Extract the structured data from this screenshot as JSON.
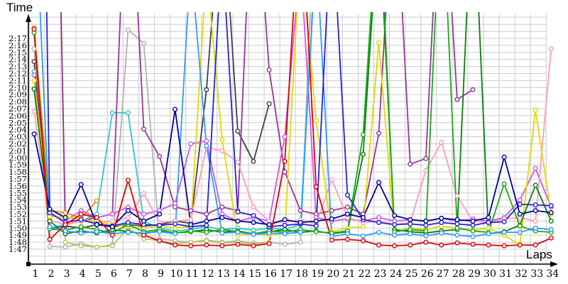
{
  "titles": {
    "y_axis": "Time",
    "x_axis": "Laps"
  },
  "layout_colors": {
    "grid": "#cccccc",
    "axis": "#000000",
    "tick_label": "#000000",
    "marker_fill": "#ffffff"
  },
  "chart_data": {
    "type": "line",
    "title": "",
    "xlabel": "Laps",
    "ylabel": "Time",
    "x": [
      1,
      2,
      3,
      4,
      5,
      6,
      7,
      8,
      9,
      10,
      11,
      12,
      13,
      14,
      15,
      16,
      17,
      18,
      19,
      20,
      21,
      22,
      23,
      24,
      25,
      26,
      27,
      28,
      29,
      30,
      31,
      32,
      33,
      34
    ],
    "x_tick_labels": [
      "1",
      "2",
      "3",
      "4",
      "5",
      "6",
      "7",
      "8",
      "9",
      "10",
      "11",
      "12",
      "13",
      "14",
      "15",
      "16",
      "17",
      "18",
      "19",
      "20",
      "21",
      "22",
      "23",
      "24",
      "25",
      "26",
      "27",
      "28",
      "29",
      "30",
      "31",
      "32",
      "33",
      "34"
    ],
    "y_tick_labels": [
      "1:47",
      "1:48",
      "1:49",
      "1:50",
      "1:51",
      "1:52",
      "1:53",
      "1:54",
      "1:55",
      "1:56",
      "1:57",
      "1:58",
      "1:59",
      "2:00",
      "2:01",
      "2:02",
      "2:03",
      "2:04",
      "2:05",
      "2:06",
      "2:07",
      "2:08",
      "2:09",
      "2:10",
      "2:11",
      "2:12",
      "2:13",
      "2:14",
      "2:15",
      "2:16",
      "2:17"
    ],
    "y_base_seconds": 107,
    "y_top_seconds": 137,
    "grid": true,
    "legend": "none",
    "note_units": "values are lap times in total seconds (1:47 = 107 s); values above ~2:20 run off the top of the plot (pit/incident laps)",
    "series": [
      {
        "name": "gray",
        "color": "#b3b3b3",
        "values": [
          135.5,
          107.4,
          107.3,
          107.8,
          107.3,
          107.6,
          138.2,
          136.3,
          108.5,
          108.2,
          108,
          108.3,
          108,
          108.2,
          107.9,
          108,
          107.7,
          108,
          160,
          null,
          null,
          null,
          null,
          null,
          null,
          null,
          null,
          null,
          null,
          null,
          null,
          null,
          null,
          null
        ]
      },
      {
        "name": "darkgray",
        "color": "#404040",
        "values": [
          133.7,
          110,
          110.3,
          110,
          110.5,
          110.2,
          110.5,
          110.3,
          110.5,
          111,
          110.7,
          129.7,
          158,
          123.8,
          119.5,
          127.7,
          null,
          null,
          null,
          null,
          null,
          null,
          null,
          null,
          null,
          null,
          null,
          null,
          null,
          null,
          null,
          null,
          null,
          null
        ]
      },
      {
        "name": "olive",
        "color": "#b4c45a",
        "values": [
          150,
          225,
          108,
          107.5,
          107.3,
          107.5,
          110,
          108.5,
          108.2,
          107.8,
          108,
          108.2,
          107.9,
          108,
          107.7,
          108,
          null,
          null,
          null,
          null,
          null,
          null,
          null,
          null,
          null,
          null,
          null,
          null,
          null,
          null,
          null,
          null,
          null,
          null
        ]
      },
      {
        "name": "orange",
        "color": "#ee8800",
        "values": [
          138.5,
          112.5,
          112.2,
          111.4,
          113.9,
          null,
          null,
          null,
          null,
          null,
          null,
          null,
          null,
          null,
          null,
          null,
          null,
          null,
          null,
          null,
          null,
          null,
          null,
          null,
          null,
          null,
          null,
          null,
          null,
          null,
          null,
          null,
          null,
          null
        ]
      },
      {
        "name": "cyan",
        "color": "#2ec8c8",
        "values": [
          132.3,
          110,
          110.5,
          111,
          112,
          126.4,
          126.4,
          111,
          110,
          109.6,
          109.8,
          110.2,
          109.8,
          110,
          109.7,
          110,
          109.8,
          110.5,
          150,
          null,
          null,
          null,
          null,
          null,
          null,
          null,
          null,
          null,
          null,
          null,
          null,
          null,
          null,
          null
        ]
      },
      {
        "name": "purple",
        "color": "#993399",
        "values": [
          155,
          220,
          110.5,
          111,
          111.5,
          112,
          168,
          124.1,
          120.2,
          113,
          112.5,
          112,
          113,
          112.5,
          164,
          132.5,
          118,
          112.5,
          112,
          112.5,
          113,
          112,
          123.5,
          162,
          119.1,
          119.9,
          165,
          128.3,
          129.7,
          null,
          null,
          null,
          null,
          null
        ]
      },
      {
        "name": "violet",
        "color": "#cc55ee",
        "values": [
          131.8,
          112,
          111,
          112.5,
          111.5,
          112,
          113,
          112,
          112.5,
          113.5,
          122,
          122.4,
          112,
          111,
          111.5,
          111,
          123,
          148,
          111.5,
          111,
          111.3,
          111,
          111.5,
          111,
          111.2,
          111,
          111.4,
          111,
          111.3,
          111,
          111.5,
          114,
          118.5,
          113
        ]
      },
      {
        "name": "pink",
        "color": "#ff9bbb",
        "values": [
          126.6,
          111.1,
          110.5,
          111,
          110.8,
          111,
          111.5,
          114.9,
          110.8,
          111,
          111.2,
          121.5,
          121,
          119.4,
          113,
          111,
          110.8,
          111.2,
          110.6,
          116.9,
          111.5,
          110.8,
          111,
          110.5,
          110.8,
          118.2,
          122.2,
          114.6,
          111,
          110.8,
          111.3,
          111.5,
          111,
          135.5
        ]
      },
      {
        "name": "yellow",
        "color": "#e2d800",
        "values": [
          131,
          111.6,
          111.6,
          111.2,
          111,
          110.5,
          110.2,
          110,
          110.3,
          110,
          110.2,
          147,
          122.6,
          109,
          109.2,
          109,
          109.3,
          150,
          125.3,
          109.5,
          110,
          110.2,
          136.4,
          109.5,
          110,
          109.8,
          110.3,
          110,
          109.7,
          110,
          109,
          107.6,
          126.8,
          112
        ]
      },
      {
        "name": "darkgreen",
        "color": "#0a7d0a",
        "values": [
          129.8,
          111,
          109.2,
          109.6,
          109.3,
          109.8,
          109.5,
          109.2,
          109.6,
          109.3,
          109.5,
          109.8,
          109.4,
          109.6,
          109.2,
          109.5,
          109.8,
          109.4,
          109.6,
          109.2,
          109.5,
          120.5,
          155,
          109.8,
          109.5,
          109.3,
          109.6,
          109.8,
          160,
          109.2,
          109.5,
          110.4,
          116.1,
          111
        ]
      },
      {
        "name": "green",
        "color": "#17ab17",
        "values": [
          137.8,
          109.9,
          109.7,
          110.2,
          109.8,
          109.3,
          110.5,
          109.5,
          109.8,
          109.3,
          109.6,
          109.4,
          109.8,
          109.5,
          109.2,
          109.6,
          109.4,
          109.8,
          109.5,
          109.3,
          109.6,
          123.3,
          158,
          109.5,
          109.8,
          109.6,
          160,
          110,
          109.6,
          109.4,
          116.3,
          110.3,
          109.6,
          109.4
        ]
      },
      {
        "name": "skyblue",
        "color": "#2e9bff",
        "values": [
          160,
          110.2,
          109.6,
          109.3,
          109.5,
          109.2,
          109.4,
          109.3,
          109.5,
          109.2,
          148,
          121.7,
          109.3,
          109.4,
          109.1,
          109.3,
          109.2,
          109.4,
          150,
          108.8,
          109.2,
          108.9,
          109.4,
          109,
          109.2,
          108.9,
          109.3,
          109,
          108.8,
          109.2,
          109.4,
          109.4,
          110,
          109.8
        ]
      },
      {
        "name": "blue",
        "color": "#2222dd",
        "values": [
          260,
          112.2,
          110.8,
          111.2,
          110.6,
          110.3,
          110.8,
          110.5,
          110.4,
          110.6,
          110.2,
          110.4,
          150,
          112.3,
          111.8,
          110.2,
          110.4,
          110.6,
          110.3,
          155,
          114.7,
          111.2,
          110.8,
          110.5,
          110.6,
          110.4,
          110.8,
          110.6,
          110.4,
          110.8,
          110.9,
          113.4,
          113.3,
          113.2
        ]
      },
      {
        "name": "navy",
        "color": "#0000a0",
        "values": [
          123.4,
          112.7,
          111.5,
          116.2,
          110.5,
          110.2,
          112.5,
          111,
          112,
          126.9,
          110.5,
          111,
          111.5,
          111,
          110.8,
          110.5,
          111.2,
          110.8,
          111,
          111.3,
          112,
          111.5,
          116.5,
          111.8,
          111.2,
          111,
          111.4,
          111.2,
          111,
          111.5,
          120.1,
          112,
          112.5,
          112.2
        ]
      },
      {
        "name": "red",
        "color": "#e10000",
        "values": [
          138.3,
          108.4,
          110.5,
          112,
          111.5,
          109,
          116.8,
          109,
          108.2,
          107.6,
          107.5,
          107.6,
          107.5,
          107.7,
          107.5,
          107.8,
          119.5,
          158,
          115.9,
          108.3,
          108.4,
          108.2,
          107.6,
          107.5,
          107.6,
          108,
          107.6,
          107.9,
          107.7,
          107.6,
          107.5,
          107.6,
          107.6,
          108.6
        ]
      }
    ]
  }
}
